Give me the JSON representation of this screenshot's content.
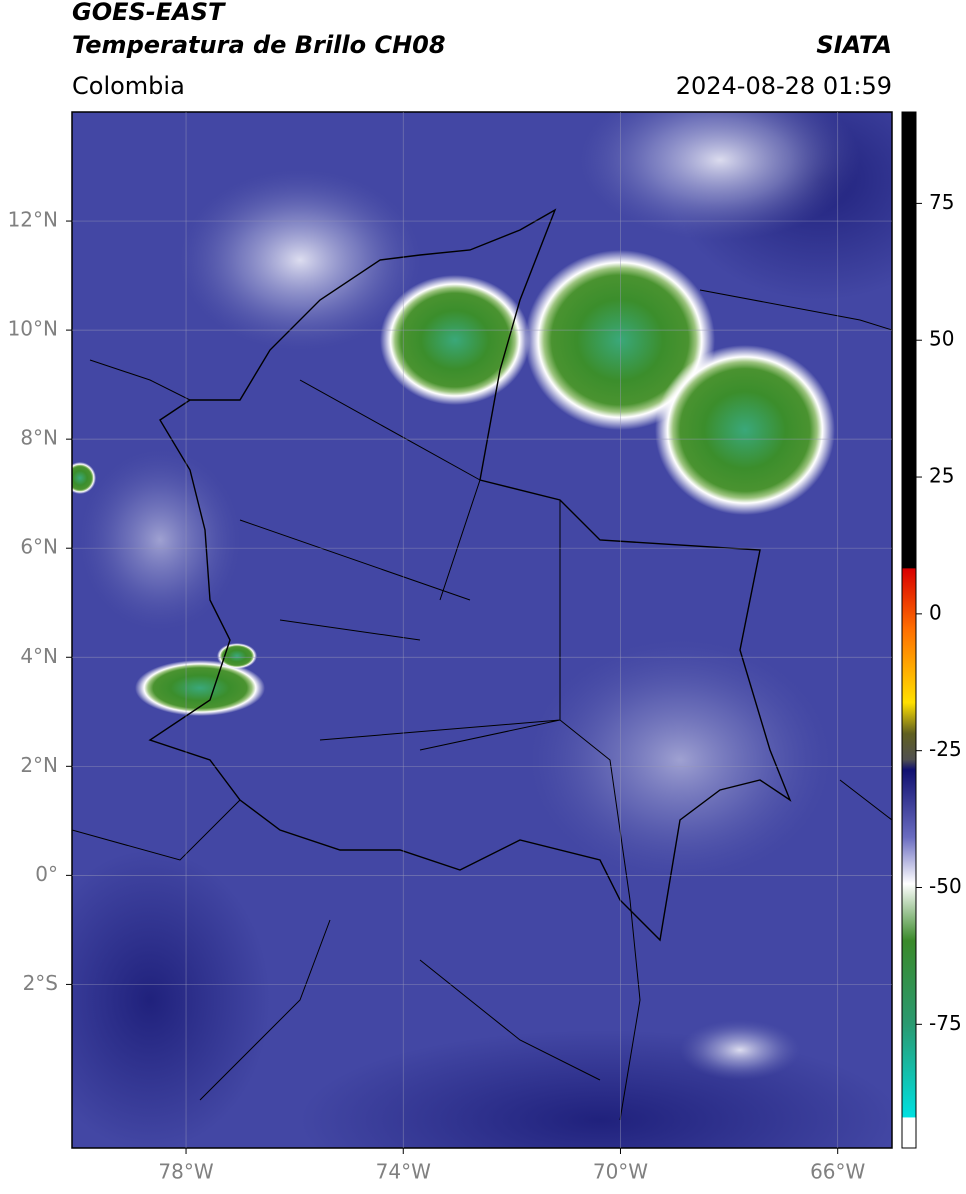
{
  "header": {
    "title": "GOES-EAST",
    "subtitle": "Temperatura de Brillo CH08",
    "region": "Colombia",
    "source": "SIATA",
    "datetime": "2024-08-28 01:59"
  },
  "map": {
    "xlim": [
      -80.1,
      -65.0
    ],
    "ylim": [
      -5.0,
      14.0
    ],
    "xticks": [
      {
        "value": -78,
        "label": "78°W"
      },
      {
        "value": -74,
        "label": "74°W"
      },
      {
        "value": -70,
        "label": "70°W"
      },
      {
        "value": -66,
        "label": "66°W"
      }
    ],
    "yticks": [
      {
        "value": 12,
        "label": "12°N"
      },
      {
        "value": 10,
        "label": "10°N"
      },
      {
        "value": 8,
        "label": "8°N"
      },
      {
        "value": 6,
        "label": "6°N"
      },
      {
        "value": 4,
        "label": "4°N"
      },
      {
        "value": 2,
        "label": "2°N"
      },
      {
        "value": 0,
        "label": "0°"
      },
      {
        "value": -2,
        "label": "2°S"
      }
    ],
    "grid": true
  },
  "colorbar": {
    "lim": [
      -97.6,
      91.7
    ],
    "ticks": [
      75,
      50,
      25,
      0,
      -25,
      -50,
      -75
    ]
  }
}
